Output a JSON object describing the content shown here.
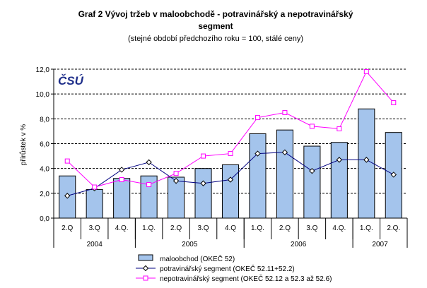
{
  "chart_data": {
    "type": "bar+line",
    "title_line1": "Graf 2 Vývoj tržeb v maloobchodě - potravinářský a nepotravinářský",
    "title_line2": "segment",
    "subtitle": "(stejné období předchozího roku = 100, stálé ceny)",
    "ylabel": "přírůstek v %",
    "ylim": [
      0,
      12
    ],
    "yticks": [
      "0,0",
      "2,0",
      "4,0",
      "6,0",
      "8,0",
      "10,0",
      "12,0"
    ],
    "categories": [
      "2.Q",
      "3.Q",
      "4.Q.",
      "1.Q.",
      "2.Q",
      "3.Q",
      "4.Q",
      "1.Q.",
      "2.Q",
      "3.Q",
      "4.Q.",
      "1.Q.",
      "2.Q."
    ],
    "years": [
      {
        "label": "2004",
        "span": 3
      },
      {
        "label": "2005",
        "span": 4
      },
      {
        "label": "2006",
        "span": 4
      },
      {
        "label": "2007",
        "span": 2
      }
    ],
    "series": [
      {
        "name": "maloobchod (OKEČ 52)",
        "kind": "bar",
        "color": "#a4c4ec",
        "values": [
          3.4,
          2.3,
          3.2,
          3.4,
          3.3,
          4.0,
          4.3,
          6.8,
          7.1,
          5.8,
          6.1,
          8.8,
          6.9
        ]
      },
      {
        "name": "potravinářský segment (OKEČ 52.11+52.2)",
        "kind": "line",
        "color": "#000080",
        "values": [
          1.8,
          2.4,
          3.9,
          4.5,
          3.0,
          2.8,
          3.1,
          5.2,
          5.3,
          3.8,
          4.7,
          4.7,
          3.5
        ]
      },
      {
        "name": "nepotravinářský segment (OKEČ 52.12 a 52.3 až 52.6)",
        "kind": "line",
        "color": "#ff00ff",
        "values": [
          4.6,
          2.5,
          3.1,
          2.7,
          3.6,
          5.0,
          5.2,
          8.1,
          8.5,
          7.4,
          7.2,
          11.8,
          9.3
        ]
      }
    ]
  },
  "logo_text": "ČSÚ"
}
